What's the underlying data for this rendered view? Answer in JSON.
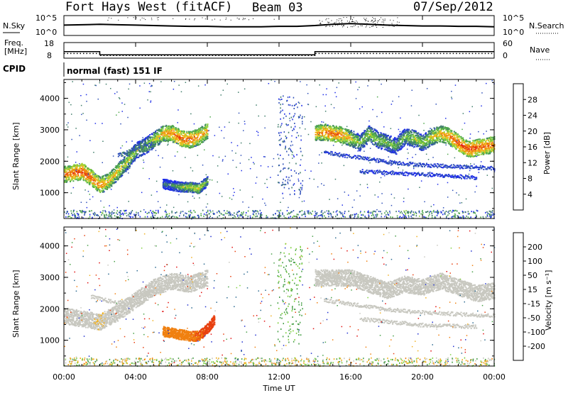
{
  "header": {
    "station": "Fort Hays West (fitACF)",
    "beam": "Beam 03",
    "date": "07/Sep/2012"
  },
  "param_panel": {
    "nsky_label": "N.Sky",
    "nsky_ticks": [
      "10^5",
      "10^0"
    ],
    "nsearch_label": "N.Search",
    "nsearch_ticks": [
      "10^5",
      "10^0"
    ],
    "freq_label_1": "Freq.",
    "freq_label_2": "[MHz]",
    "freq_ticks": [
      "18",
      "8"
    ],
    "nave_label": "Nave",
    "nave_ticks": [
      "60",
      "0"
    ],
    "cpid_label": "CPID",
    "cpid_text": "normal (fast) 151 IF"
  },
  "colors": {
    "power_scale": [
      "#1f2ee8",
      "#2f50b8",
      "#3f7d6a",
      "#4fa84c",
      "#8fd23a",
      "#f0c020",
      "#f08a10",
      "#e84010",
      "#e01010"
    ],
    "velocity_scale": [
      "#2030d0",
      "#2c6a90",
      "#48a048",
      "#80d040",
      "#c8c8c0",
      "#f0b020",
      "#f08010",
      "#e84010",
      "#e01010"
    ]
  },
  "chart_data": [
    {
      "type": "line",
      "panel": "noise-frequency",
      "x_label": "",
      "x_ticks": [
        "00:00",
        "04:00",
        "08:00",
        "12:00",
        "16:00",
        "20:00",
        "00:00"
      ],
      "series": [
        {
          "name": "N.Sky",
          "x": [
            0,
            1,
            2,
            3,
            4,
            5,
            6,
            7,
            8,
            9,
            10,
            11,
            12,
            13,
            14,
            15,
            16,
            17,
            18,
            19,
            20,
            21,
            22,
            23,
            24
          ],
          "values": [
            2.6,
            2.7,
            2.8,
            2.7,
            2.6,
            2.5,
            2.4,
            2.3,
            2.3,
            2.2,
            2.2,
            2.2,
            2.3,
            2.3,
            2.5,
            2.8,
            3.0,
            2.8,
            2.6,
            2.5,
            2.4,
            2.4,
            2.3,
            2.3,
            2.2
          ]
        },
        {
          "name": "Freq.",
          "x": [
            0,
            2.0,
            2.0,
            14.0,
            14.0,
            24
          ],
          "values": [
            12.2,
            12.2,
            10.2,
            10.2,
            12.2,
            12.2
          ]
        },
        {
          "name": "Nave",
          "x": [
            0,
            2.0,
            2.0,
            14.0,
            14.0,
            24
          ],
          "values": [
            18,
            18,
            10,
            10,
            18,
            18
          ]
        }
      ]
    },
    {
      "type": "heatmap",
      "panel": "power",
      "ylabel": "Slant Range [km]",
      "y_ticks": [
        "1000",
        "2000",
        "3000",
        "4000"
      ],
      "x_ticks": [
        "00:00",
        "04:00",
        "08:00",
        "12:00",
        "16:00",
        "20:00",
        "00:00"
      ],
      "colorbar_label": "Power [dB]",
      "colorbar_ticks": [
        "4",
        "8",
        "12",
        "16",
        "20",
        "24",
        "28"
      ],
      "scatter_bands": [
        {
          "x": [
            0.0,
            0.5,
            1.0,
            1.5,
            2.0,
            2.5,
            3.0,
            3.5,
            4.0,
            4.5,
            5.0,
            5.5,
            6.0,
            6.5,
            7.0,
            7.5,
            8.0
          ],
          "y": [
            1600,
            1650,
            1700,
            1500,
            1250,
            1400,
            1700,
            2000,
            2350,
            2500,
            2700,
            2900,
            2900,
            2750,
            2700,
            2800,
            3000
          ],
          "power": [
            24,
            26,
            27,
            25,
            24,
            22,
            20,
            18,
            16,
            16,
            18,
            22,
            24,
            26,
            25,
            24,
            22
          ]
        },
        {
          "x": [
            5.5,
            6.0,
            6.5,
            7.0,
            7.5,
            8.0
          ],
          "y": [
            1300,
            1250,
            1200,
            1200,
            1150,
            1400
          ],
          "power": [
            10,
            12,
            16,
            18,
            20,
            14
          ]
        },
        {
          "x": [
            14.0,
            14.5,
            15.0,
            15.5,
            16.0,
            16.5,
            17.0,
            17.5,
            18.0,
            18.5,
            19.0,
            19.5,
            20.0,
            20.5,
            21.0,
            21.5,
            22.0,
            22.5,
            23.0,
            23.5,
            24.0
          ],
          "y": [
            2900,
            2950,
            2900,
            2850,
            2750,
            2600,
            2900,
            2700,
            2600,
            2500,
            2800,
            2750,
            2600,
            2800,
            2900,
            2800,
            2600,
            2400,
            2450,
            2500,
            2550
          ],
          "power": [
            22,
            24,
            25,
            24,
            20,
            16,
            18,
            16,
            16,
            14,
            16,
            18,
            16,
            20,
            22,
            24,
            26,
            27,
            26,
            25,
            24
          ]
        }
      ]
    },
    {
      "type": "heatmap",
      "panel": "velocity",
      "ylabel": "Slant Range [km]",
      "xlabel": "Time UT",
      "y_ticks": [
        "1000",
        "2000",
        "3000",
        "4000"
      ],
      "x_ticks": [
        "00:00",
        "04:00",
        "08:00",
        "12:00",
        "16:00",
        "20:00",
        "00:00"
      ],
      "colorbar_label": "Velocity [m s⁻¹]",
      "colorbar_ticks": [
        "200",
        "100",
        "50",
        "15",
        "-15",
        "-50",
        "-100",
        "-200"
      ],
      "scatter_bands": [
        {
          "x": [
            0.0,
            1.0,
            2.0,
            3.0,
            4.0,
            5.0,
            6.0,
            7.0,
            8.0
          ],
          "y": [
            1800,
            1700,
            1600,
            1900,
            2300,
            2700,
            2900,
            2800,
            3000
          ],
          "velocity": [
            0,
            0,
            -10,
            0,
            5,
            0,
            0,
            0,
            0
          ]
        },
        {
          "x": [
            5.5,
            6.0,
            6.5,
            7.0,
            7.5,
            8.0,
            8.4
          ],
          "y": [
            1300,
            1250,
            1200,
            1150,
            1150,
            1400,
            1700
          ],
          "velocity": [
            -60,
            -70,
            -80,
            -90,
            -100,
            -110,
            -120
          ]
        },
        {
          "x": [
            14.0,
            15.0,
            16.0,
            17.0,
            18.0,
            19.0,
            20.0,
            21.0,
            22.0,
            23.0,
            24.0
          ],
          "y": [
            3000,
            3000,
            3000,
            2800,
            2600,
            2800,
            2700,
            2900,
            2700,
            2500,
            2600
          ],
          "velocity": [
            5,
            0,
            0,
            0,
            -5,
            0,
            0,
            5,
            0,
            0,
            0
          ]
        }
      ]
    }
  ]
}
